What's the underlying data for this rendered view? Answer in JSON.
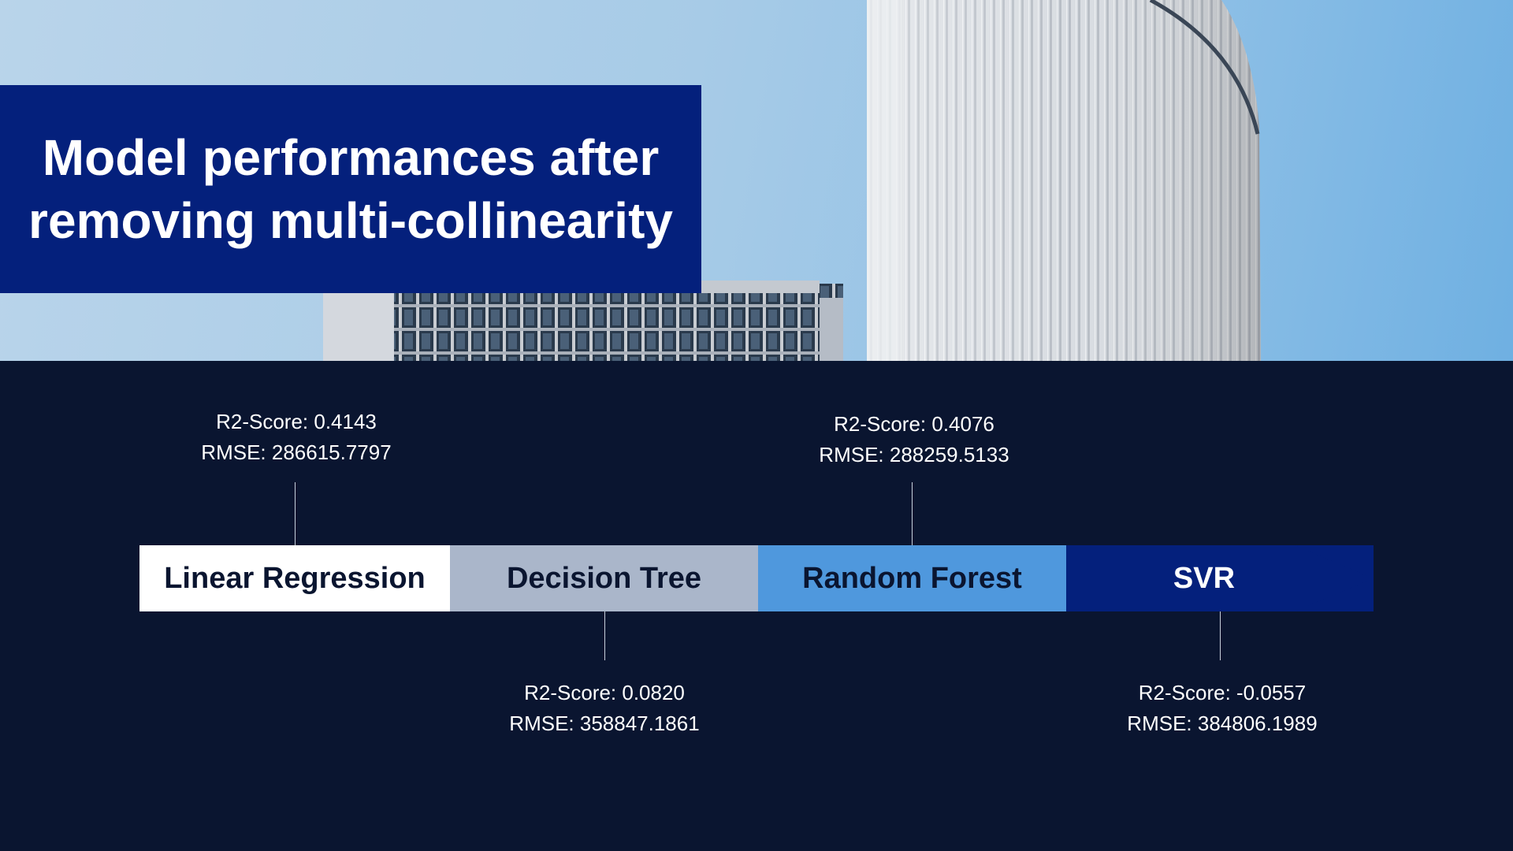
{
  "title": "Model performances after removing multi-collinearity",
  "colors": {
    "title_background": "#04207c",
    "page_background": "#0a1530",
    "stage_linear_regression": "#ffffff",
    "stage_decision_tree": "#aab6ca",
    "stage_random_forest": "#4f98dd",
    "stage_svr": "#04207c"
  },
  "models": [
    {
      "name": "Linear Regression",
      "r2": "R2-Score: 0.4143",
      "rmse": "RMSE: 286615.7797",
      "label_position": "above"
    },
    {
      "name": "Decision Tree",
      "r2": "R2-Score: 0.0820",
      "rmse": "RMSE: 358847.1861",
      "label_position": "below"
    },
    {
      "name": "Random Forest",
      "r2": "R2-Score: 0.4076",
      "rmse": "RMSE: 288259.5133",
      "label_position": "above"
    },
    {
      "name": "SVR",
      "r2": "R2-Score: -0.0557",
      "rmse": "RMSE: 384806.1989",
      "label_position": "below"
    }
  ]
}
